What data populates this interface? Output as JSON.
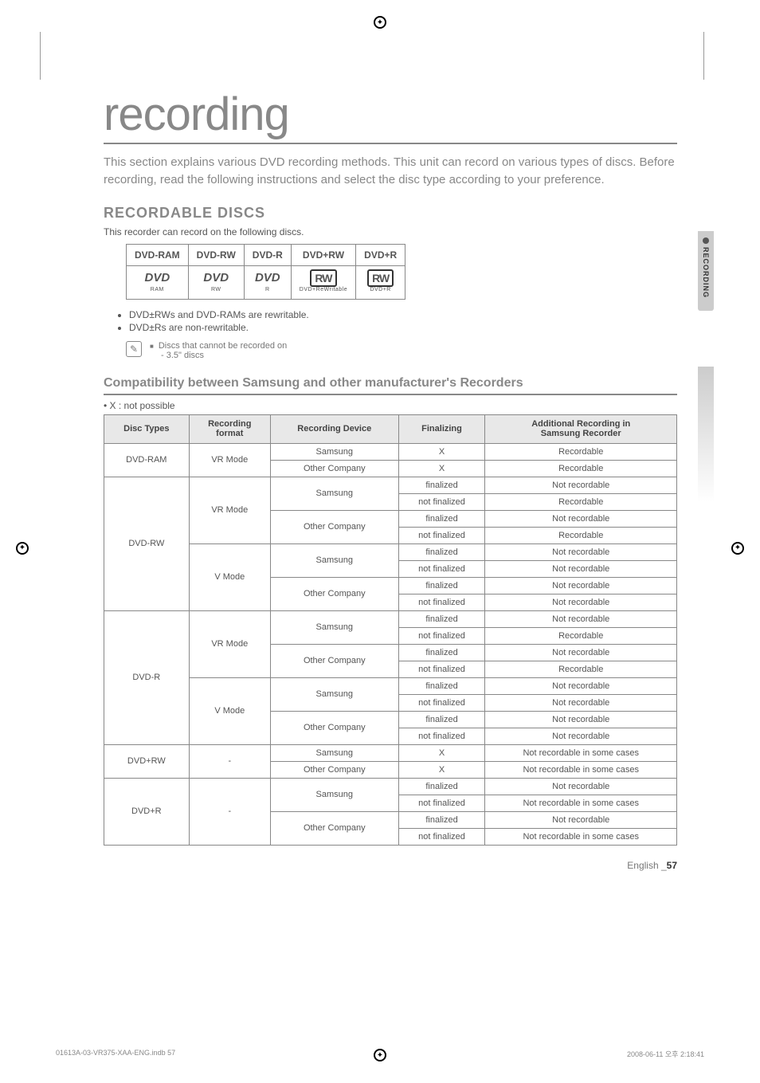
{
  "title": "recording",
  "intro": "This section explains various DVD recording methods.\nThis unit can record on various types of discs. Before recording, read the following instructions and select the disc type according to your preference.",
  "section_recordable": "RECORDABLE DISCS",
  "recordable_desc": "This recorder can record on the following discs.",
  "sidebar": {
    "label": "RECORDING"
  },
  "disc_headers": [
    "DVD-RAM",
    "DVD-RW",
    "DVD-R",
    "DVD+RW",
    "DVD+R"
  ],
  "disc_logos": [
    {
      "top": "DVD",
      "sub": "RAM"
    },
    {
      "top": "DVD",
      "sub": "RW"
    },
    {
      "top": "DVD",
      "sub": "R"
    },
    {
      "top": "RW",
      "sub": "DVD+ReWritable",
      "box": true
    },
    {
      "top": "RW",
      "sub": "DVD+R",
      "box": true
    }
  ],
  "bullets": [
    "DVD±RWs and DVD-RAMs are rewritable.",
    "DVD±Rs are non-rewritable."
  ],
  "note": {
    "line1": "Discs that cannot be recorded on",
    "line2": "- 3.5\" discs"
  },
  "subsection": "Compatibility between Samsung and other manufacturer's Recorders",
  "legend": "• X : not possible",
  "compat_headers": [
    "Disc Types",
    "Recording format",
    "Recording Device",
    "Finalizing",
    "Additional Recording in Samsung Recorder"
  ],
  "compat_rows": [
    {
      "disc": "DVD-RAM",
      "disc_span": 2,
      "format": "VR Mode",
      "format_span": 2,
      "device": "Samsung",
      "final": "X",
      "add": "Recordable"
    },
    {
      "device": "Other Company",
      "final": "X",
      "add": "Recordable"
    },
    {
      "disc": "DVD-RW",
      "disc_span": 8,
      "format": "VR Mode",
      "format_span": 4,
      "device": "Samsung",
      "device_span": 2,
      "final": "finalized",
      "add": "Not recordable"
    },
    {
      "final": "not finalized",
      "add": "Recordable"
    },
    {
      "device": "Other Company",
      "device_span": 2,
      "final": "finalized",
      "add": "Not recordable"
    },
    {
      "final": "not finalized",
      "add": "Recordable"
    },
    {
      "format": "V Mode",
      "format_span": 4,
      "device": "Samsung",
      "device_span": 2,
      "final": "finalized",
      "add": "Not recordable"
    },
    {
      "final": "not finalized",
      "add": "Not recordable"
    },
    {
      "device": "Other Company",
      "device_span": 2,
      "final": "finalized",
      "add": "Not recordable"
    },
    {
      "final": "not finalized",
      "add": "Not recordable"
    },
    {
      "disc": "DVD-R",
      "disc_span": 8,
      "format": "VR Mode",
      "format_span": 4,
      "device": "Samsung",
      "device_span": 2,
      "final": "finalized",
      "add": "Not recordable"
    },
    {
      "final": "not finalized",
      "add": "Recordable"
    },
    {
      "device": "Other Company",
      "device_span": 2,
      "final": "finalized",
      "add": "Not recordable"
    },
    {
      "final": "not finalized",
      "add": "Recordable"
    },
    {
      "format": "V Mode",
      "format_span": 4,
      "device": "Samsung",
      "device_span": 2,
      "final": "finalized",
      "add": "Not recordable"
    },
    {
      "final": "not finalized",
      "add": "Not recordable"
    },
    {
      "device": "Other Company",
      "device_span": 2,
      "final": "finalized",
      "add": "Not recordable"
    },
    {
      "final": "not finalized",
      "add": "Not recordable"
    },
    {
      "disc": "DVD+RW",
      "disc_span": 2,
      "format": "-",
      "format_span": 2,
      "device": "Samsung",
      "final": "X",
      "add": "Not recordable in some cases"
    },
    {
      "device": "Other Company",
      "final": "X",
      "add": "Not recordable in some cases"
    },
    {
      "disc": "DVD+R",
      "disc_span": 4,
      "format": "-",
      "format_span": 4,
      "device": "Samsung",
      "device_span": 2,
      "final": "finalized",
      "add": "Not recordable"
    },
    {
      "final": "not finalized",
      "add": "Not recordable in some cases"
    },
    {
      "device": "Other Company",
      "device_span": 2,
      "final": "finalized",
      "add": "Not recordable"
    },
    {
      "final": "not finalized",
      "add": "Not recordable in some cases"
    }
  ],
  "footer": {
    "lang": "English _",
    "page": "57"
  },
  "print": {
    "left": "01613A-03-VR375-XAA-ENG.indb   57",
    "right": "2008-06-11   오후 2:18:41"
  }
}
